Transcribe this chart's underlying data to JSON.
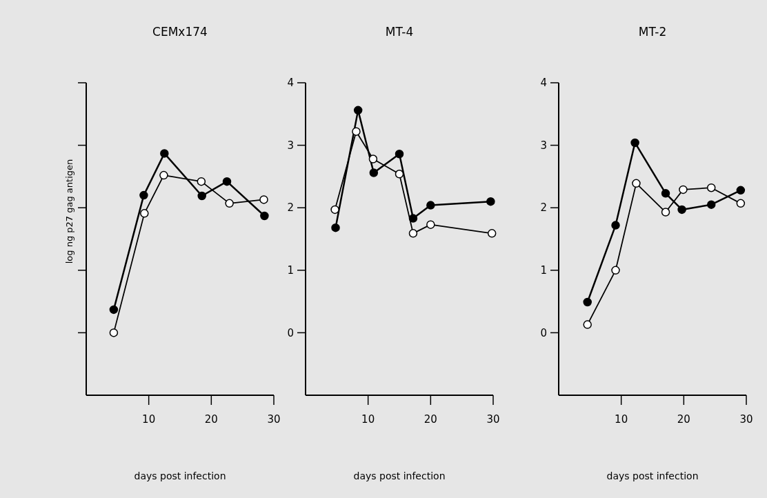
{
  "chart_data": [
    {
      "type": "line",
      "title": "CEMx174",
      "xlabel": "days post infection",
      "ylabel": "log ng p27 gag antigen",
      "xlim": [
        0,
        30
      ],
      "xticks": [
        10,
        20,
        30
      ],
      "ylim": [
        -1,
        4
      ],
      "yticks": [
        0,
        1,
        2,
        3,
        4
      ],
      "tick_labels": "x",
      "marker": "circle",
      "grid": false,
      "series": [
        {
          "color": "#000000",
          "x": [
            4.4,
            9.2,
            12.5,
            18.5,
            22.5,
            28.5
          ],
          "values": [
            0.37,
            2.2,
            2.87,
            2.19,
            2.42,
            1.87
          ]
        },
        {
          "color": "#ffffff",
          "x": [
            4.4,
            9.3,
            12.4,
            18.4,
            22.9,
            28.4
          ],
          "values": [
            0,
            1.91,
            2.52,
            2.42,
            2.07,
            2.13
          ]
        }
      ]
    },
    {
      "type": "line",
      "title": "MT-4",
      "xlabel": "days post infection",
      "xlim": [
        0,
        30
      ],
      "xticks": [
        10,
        20,
        30
      ],
      "ylim": [
        -1,
        4
      ],
      "yticks": [
        0,
        1,
        2,
        3,
        4
      ],
      "marker": "circle",
      "grid": false,
      "series": [
        {
          "color": "#000000",
          "x": [
            4.8,
            8.4,
            10.9,
            15,
            17.2,
            20,
            29.6
          ],
          "values": [
            1.68,
            3.56,
            2.56,
            2.86,
            1.83,
            2.04,
            2.1
          ]
        },
        {
          "color": "#ffffff",
          "x": [
            4.7,
            8.1,
            10.8,
            15,
            17.2,
            20,
            29.8
          ],
          "values": [
            1.97,
            3.22,
            2.78,
            2.54,
            1.59,
            1.73,
            1.59
          ]
        }
      ]
    },
    {
      "type": "line",
      "title": "MT-2",
      "xlabel": "days post infection",
      "xlim": [
        0,
        30
      ],
      "xticks": [
        10,
        20,
        30
      ],
      "ylim": [
        -1,
        4
      ],
      "yticks": [
        0,
        1,
        2,
        3,
        4
      ],
      "marker": "circle",
      "grid": false,
      "series": [
        {
          "color": "#000000",
          "x": [
            4.6,
            9.1,
            12.2,
            17.1,
            19.7,
            24.4,
            29.1
          ],
          "values": [
            0.49,
            1.72,
            3.04,
            2.23,
            1.97,
            2.05,
            2.28
          ]
        },
        {
          "color": "#ffffff",
          "x": [
            4.6,
            9.1,
            12.4,
            17.1,
            19.9,
            24.4,
            29.1
          ],
          "values": [
            0.13,
            1,
            2.39,
            1.93,
            2.29,
            2.32,
            2.07
          ]
        }
      ]
    }
  ]
}
